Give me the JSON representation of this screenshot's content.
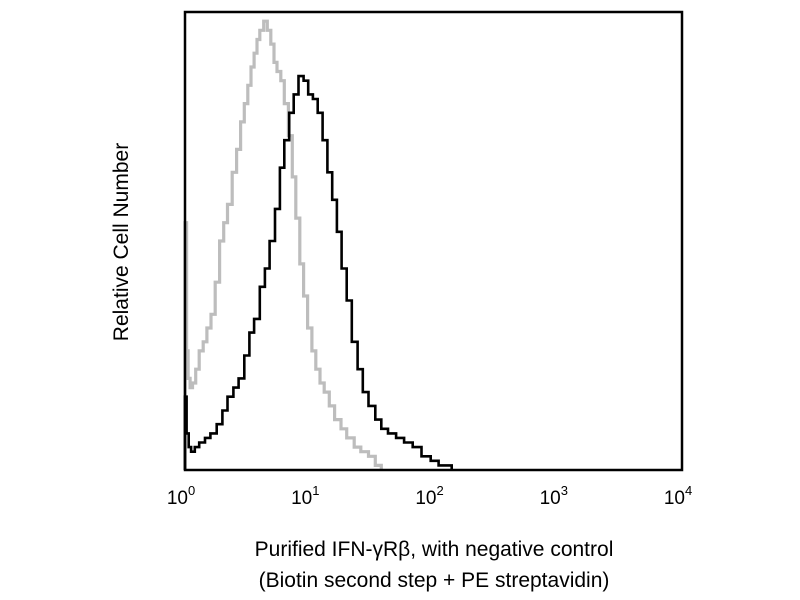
{
  "chart_data": {
    "type": "line",
    "title": "",
    "xlabel": [
      "Purified IFN-γRβ, with negative control",
      "(Biotin second step + PE streptavidin)"
    ],
    "ylabel": "Relative Cell Number",
    "x_scale": "log",
    "xlim": [
      1,
      10000
    ],
    "ylim": [
      0,
      100
    ],
    "x_ticks": [
      {
        "base": "10",
        "exp": "0"
      },
      {
        "base": "10",
        "exp": "1"
      },
      {
        "base": "10",
        "exp": "2"
      },
      {
        "base": "10",
        "exp": "3"
      },
      {
        "base": "10",
        "exp": "4"
      }
    ],
    "y_ticks": [],
    "grid": false,
    "legend": "none",
    "series": [
      {
        "color": "#bdbdbd",
        "x": [
          1.0,
          1.03,
          1.06,
          1.1,
          1.15,
          1.22,
          1.3,
          1.4,
          1.5,
          1.62,
          1.75,
          1.9,
          2.05,
          2.2,
          2.4,
          2.6,
          2.8,
          3.0,
          3.2,
          3.4,
          3.6,
          3.8,
          4.0,
          4.3,
          4.6,
          4.9,
          5.2,
          5.5,
          5.9,
          6.3,
          6.8,
          7.3,
          7.8,
          8.4,
          9.0,
          9.7,
          10.5,
          11.3,
          12.2,
          13.2,
          14.5,
          16.0,
          18.0,
          20.0,
          23.0,
          26.0,
          30.0,
          34.0,
          38.0
        ],
        "y": [
          54,
          26,
          20,
          18,
          19,
          22,
          26,
          28,
          31,
          34,
          41,
          50,
          54,
          58,
          65,
          70,
          76,
          80,
          84,
          88,
          91,
          94,
          96,
          98,
          96,
          93,
          89,
          87,
          85,
          80,
          73,
          64,
          55,
          45,
          38,
          31,
          26,
          22,
          19,
          17,
          14,
          11,
          9,
          7,
          5,
          4,
          3,
          1,
          0
        ]
      },
      {
        "color": "#000000",
        "x": [
          1.0,
          1.03,
          1.07,
          1.12,
          1.2,
          1.3,
          1.45,
          1.6,
          1.8,
          2.0,
          2.2,
          2.45,
          2.7,
          3.0,
          3.3,
          3.6,
          4.0,
          4.4,
          4.8,
          5.3,
          5.8,
          6.3,
          6.9,
          7.5,
          8.2,
          9.0,
          9.8,
          10.7,
          11.7,
          12.8,
          14.0,
          15.3,
          16.7,
          18.2,
          20.0,
          22.0,
          24.5,
          27.0,
          30.0,
          34.0,
          38.0,
          43.0,
          50.0,
          58.0,
          68.0,
          80.0,
          95.0,
          110.0,
          125.0,
          140.0
        ],
        "y": [
          16,
          8,
          5,
          4,
          5,
          6,
          7,
          8,
          10,
          13,
          16,
          18,
          20,
          25,
          30,
          33,
          40,
          44,
          50,
          57,
          66,
          72,
          78,
          82,
          86,
          85,
          82,
          81,
          78,
          72,
          65,
          59,
          52,
          44,
          37,
          28,
          22,
          17,
          14,
          11,
          9,
          8,
          7,
          6,
          5,
          3,
          2,
          1,
          1,
          0
        ]
      }
    ]
  }
}
